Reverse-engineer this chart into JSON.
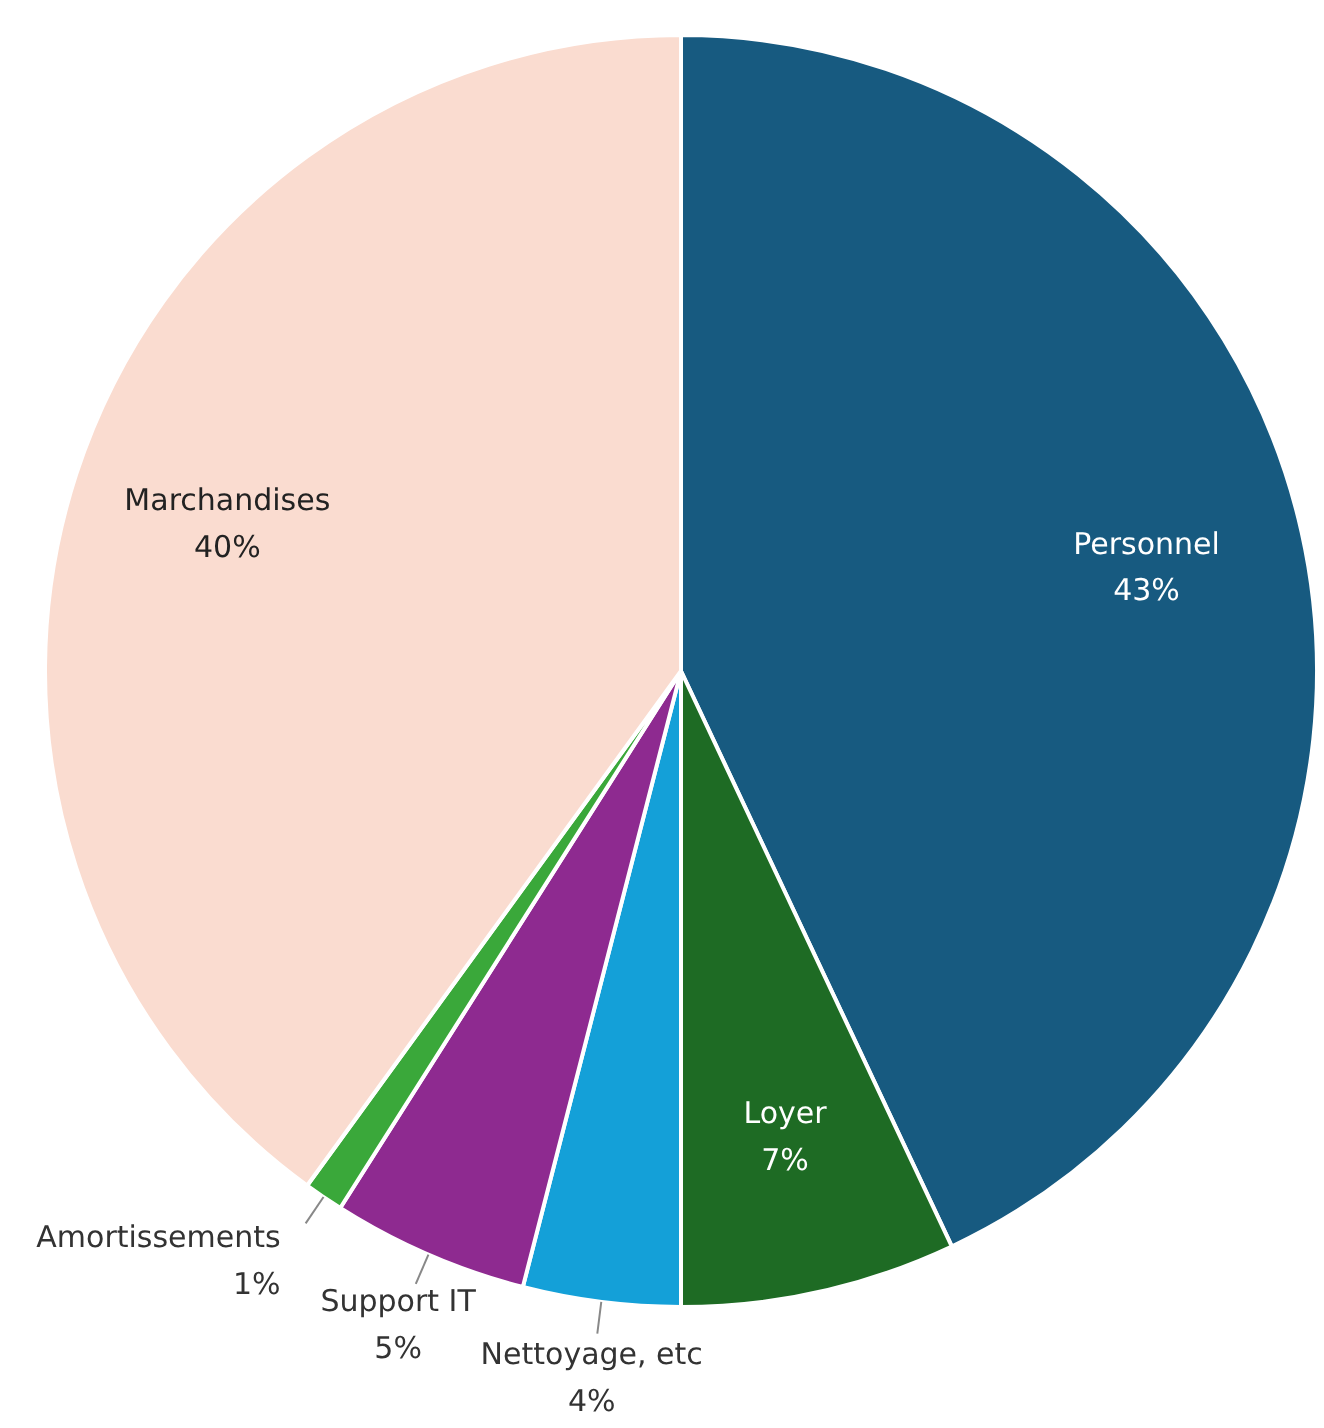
{
  "chart_data": {
    "type": "pie",
    "categories": [
      "Personnel",
      "Loyer",
      "Nettoyage, etc",
      "Support IT",
      "Amortissements",
      "Marchandises"
    ],
    "values": [
      43,
      7,
      4,
      5,
      1,
      40
    ],
    "value_labels": [
      "43%",
      "7%",
      "4%",
      "5%",
      "1%",
      "40%"
    ],
    "colors": [
      "#175a80",
      "#1e6b24",
      "#14a0d8",
      "#8e2a90",
      "#3aa83a",
      "#fadcd0"
    ]
  }
}
